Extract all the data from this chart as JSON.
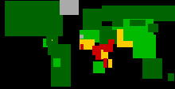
{
  "background_color": "#000000",
  "figsize": [
    2.2,
    1.14
  ],
  "dpi": 100,
  "hdi_color_map": {
    "Afghanistan": "#cc0000",
    "Albania": "#006400",
    "Algeria": "#00bb00",
    "Angola": "#ff6600",
    "Argentina": "#006400",
    "Armenia": "#006400",
    "Australia": "#006400",
    "Austria": "#006400",
    "Azerbaijan": "#006400",
    "Bangladesh": "#ffcc00",
    "Belarus": "#006400",
    "Belgium": "#006400",
    "Belize": "#00bb00",
    "Benin": "#ffcc00",
    "Bhutan": "#00bb00",
    "Bolivia": "#00bb00",
    "Bosnia and Herzegovina": "#006400",
    "Botswana": "#00bb00",
    "Brazil": "#006400",
    "Brunei": "#006400",
    "Bulgaria": "#006400",
    "Burkina Faso": "#cc0000",
    "Burundi": "#cc0000",
    "Cambodia": "#ffcc00",
    "Cameroon": "#ffcc00",
    "Canada": "#006400",
    "Central African Republic": "#cc0000",
    "Chad": "#cc0000",
    "Chile": "#006400",
    "China": "#00bb00",
    "Colombia": "#006400",
    "Comoros": "#ffcc00",
    "Republic of the Congo": "#ffcc00",
    "Congo": "#ffcc00",
    "Costa Rica": "#006400",
    "Croatia": "#006400",
    "Cuba": "#006400",
    "Cyprus": "#006400",
    "Czechia": "#006400",
    "Czech Republic": "#006400",
    "Denmark": "#006400",
    "Djibouti": "#ffcc00",
    "Dominican Republic": "#006400",
    "Ecuador": "#006400",
    "Egypt": "#00bb00",
    "El Salvador": "#00bb00",
    "Equatorial Guinea": "#00bb00",
    "Eritrea": "#cc0000",
    "Estonia": "#006400",
    "Eswatini": "#ffcc00",
    "Ethiopia": "#cc0000",
    "Fiji": "#00bb00",
    "Finland": "#006400",
    "France": "#006400",
    "Gabon": "#00bb00",
    "Gambia": "#ffcc00",
    "Germany": "#006400",
    "Ghana": "#ffcc00",
    "Greece": "#006400",
    "Guatemala": "#00bb00",
    "Guinea": "#cc0000",
    "Guinea-Bissau": "#cc0000",
    "Guyana": "#00bb00",
    "Haiti": "#ffcc00",
    "Honduras": "#00bb00",
    "Hungary": "#006400",
    "Iceland": "#006400",
    "India": "#ffcc00",
    "Indonesia": "#00bb00",
    "Iran": "#006400",
    "Iraq": "#00bb00",
    "Ireland": "#006400",
    "Israel": "#006400",
    "Italy": "#006400",
    "Jamaica": "#006400",
    "Japan": "#006400",
    "Jordan": "#006400",
    "Kazakhstan": "#006400",
    "Kenya": "#ffcc00",
    "Kuwait": "#006400",
    "Kyrgyzstan": "#00bb00",
    "Laos": "#ffcc00",
    "Latvia": "#006400",
    "Lebanon": "#006400",
    "Lesotho": "#ffcc00",
    "Liberia": "#cc0000",
    "Libya": "#006400",
    "Lithuania": "#006400",
    "Luxembourg": "#006400",
    "Madagascar": "#ffcc00",
    "Malawi": "#cc0000",
    "Malaysia": "#006400",
    "Maldives": "#006400",
    "Mali": "#cc0000",
    "Mauritania": "#ffcc00",
    "Mauritius": "#006400",
    "Mexico": "#006400",
    "Moldova": "#006400",
    "Mongolia": "#006400",
    "Montenegro": "#006400",
    "Morocco": "#00bb00",
    "Mozambique": "#cc0000",
    "Myanmar": "#ffcc00",
    "Namibia": "#00bb00",
    "Nepal": "#ffcc00",
    "Netherlands": "#006400",
    "New Zealand": "#006400",
    "Nicaragua": "#00bb00",
    "Niger": "#cc0000",
    "Nigeria": "#ffcc00",
    "North Korea": "#aaaaaa",
    "North Macedonia": "#006400",
    "Norway": "#006400",
    "Oman": "#006400",
    "Pakistan": "#ffcc00",
    "Panama": "#006400",
    "Papua New Guinea": "#00bb00",
    "Paraguay": "#006400",
    "Peru": "#006400",
    "Philippines": "#00bb00",
    "Poland": "#006400",
    "Portugal": "#006400",
    "Qatar": "#006400",
    "Romania": "#006400",
    "Russia": "#006400",
    "Rwanda": "#ffcc00",
    "Saudi Arabia": "#006400",
    "Senegal": "#ffcc00",
    "Serbia": "#006400",
    "Seychelles": "#006400",
    "Sierra Leone": "#cc0000",
    "Singapore": "#006400",
    "Slovakia": "#006400",
    "Slovenia": "#006400",
    "Solomon Islands": "#00bb00",
    "Somalia": "#cc0000",
    "South Africa": "#00bb00",
    "South Korea": "#006400",
    "South Sudan": "#cc0000",
    "Spain": "#006400",
    "Sri Lanka": "#006400",
    "Sudan": "#ffcc00",
    "Suriname": "#006400",
    "Sweden": "#006400",
    "Switzerland": "#006400",
    "Syria": "#00bb00",
    "Tajikistan": "#00bb00",
    "Tanzania": "#ffcc00",
    "Thailand": "#006400",
    "Timor-Leste": "#00bb00",
    "Togo": "#ffcc00",
    "Trinidad and Tobago": "#006400",
    "Tunisia": "#006400",
    "Turkey": "#006400",
    "Turkmenistan": "#00bb00",
    "Uganda": "#ffcc00",
    "Ukraine": "#006400",
    "United Arab Emirates": "#006400",
    "United Kingdom": "#006400",
    "United States of America": "#006400",
    "Uruguay": "#006400",
    "Uzbekistan": "#00bb00",
    "Vanuatu": "#00bb00",
    "Venezuela": "#006400",
    "Vietnam": "#00bb00",
    "W. Sahara": "#aaaaaa",
    "Yemen": "#cc0000",
    "Zambia": "#ffcc00",
    "Zimbabwe": "#ffcc00",
    "Greenland": "#aaaaaa",
    "Dem. Rep. Congo": "#cc0000",
    "Fr. S. Antarctic Lands": "#000000",
    "Antarctica": "#000000",
    "Kosovo": "#006400",
    "Ivory Coast": "#ffcc00",
    "Côte d'Ivoire": "#ffcc00",
    "São Tomé and Príncipe": "#ffcc00",
    "Palestine": "#00bb00",
    "Western Sahara": "#aaaaaa",
    "New Caledonia": "#006400",
    "Puerto Rico": "#006400"
  }
}
